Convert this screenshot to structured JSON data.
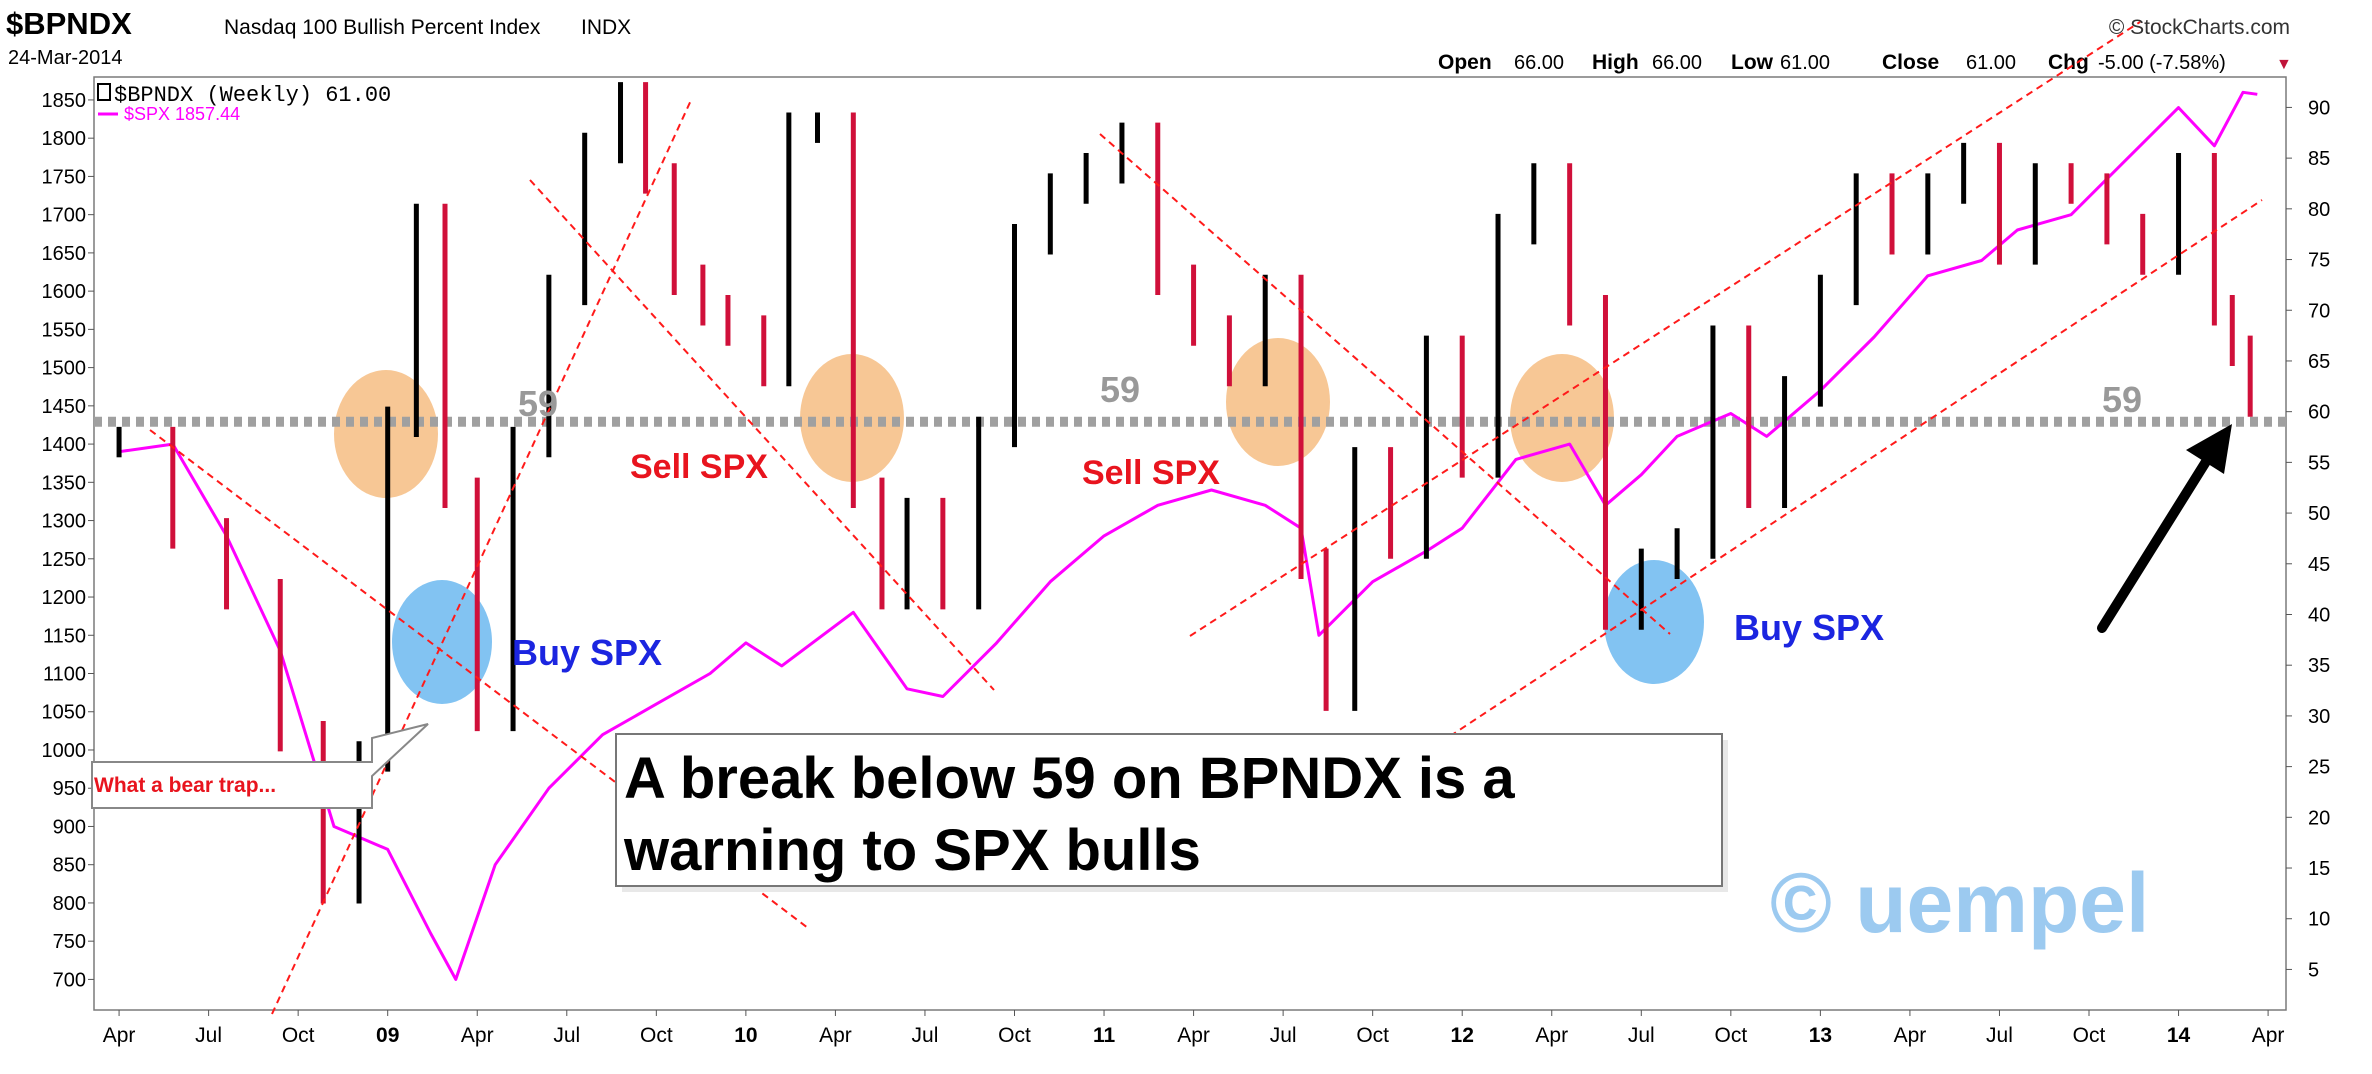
{
  "header": {
    "symbol": "$BPNDX",
    "name": "Nasdaq 100 Bullish Percent Index",
    "exchange": "INDX",
    "date": "24-Mar-2014",
    "copyright": "© StockCharts.com",
    "ohlc": [
      {
        "label": "Open",
        "value": "66.00"
      },
      {
        "label": "High",
        "value": "66.00"
      },
      {
        "label": "Low",
        "value": "61.00"
      },
      {
        "label": "Close",
        "value": "61.00"
      },
      {
        "label": "Chg",
        "value": "-5.00 (-7.58%)"
      }
    ],
    "chg_marker": "▼"
  },
  "legend": {
    "bpndx": "$BPNDX (Weekly) 61.00",
    "spx": "$SPX 1857.44"
  },
  "annotations": {
    "level_labels": [
      "59",
      "59",
      "59"
    ],
    "sell_labels": [
      "Sell SPX",
      "Sell SPX"
    ],
    "buy_labels": [
      "Buy SPX",
      "Buy SPX"
    ],
    "box_line1": "A break below 59 on BPNDX is a",
    "box_line2": "warning to SPX bulls",
    "callout": "What a bear trap...",
    "watermark": "© uempel"
  },
  "colors": {
    "up_bar": "#000000",
    "down_bar": "#d0103a",
    "spx_line": "#ff00ff",
    "trend_line": "#ff1a1a",
    "level_line": "#a0a0a0",
    "sell_circle": "#f5b97a",
    "buy_circle": "#6cb8f0"
  },
  "chart_data": {
    "type": "bar",
    "title": "$BPNDX Nasdaq 100 Bullish Percent Index",
    "periodicity": "Weekly",
    "x_range": [
      "2008-04",
      "2014-04"
    ],
    "x_tick_labels": [
      "Apr",
      "Jul",
      "Oct",
      "09",
      "Apr",
      "Jul",
      "Oct",
      "10",
      "Apr",
      "Jul",
      "Oct",
      "11",
      "Apr",
      "Jul",
      "Oct",
      "12",
      "Apr",
      "Jul",
      "Oct",
      "13",
      "Apr",
      "Jul",
      "Oct",
      "14",
      "Apr"
    ],
    "y_left_ticks": [
      700,
      750,
      800,
      850,
      900,
      950,
      1000,
      1050,
      1100,
      1150,
      1200,
      1250,
      1300,
      1350,
      1400,
      1450,
      1500,
      1550,
      1600,
      1650,
      1700,
      1750,
      1800,
      1850
    ],
    "y_left_range": [
      660,
      1880
    ],
    "y_right_ticks": [
      5,
      10,
      15,
      20,
      25,
      30,
      35,
      40,
      45,
      50,
      55,
      60,
      65,
      70,
      75,
      80,
      85,
      90
    ],
    "y_right_range": [
      1,
      93
    ],
    "level": 59,
    "series": [
      {
        "name": "$BPNDX",
        "axis": "right",
        "style": "ohlc",
        "x": [
          2008.25,
          2008.4,
          2008.55,
          2008.7,
          2008.82,
          2008.92,
          2009.0,
          2009.08,
          2009.16,
          2009.25,
          2009.35,
          2009.45,
          2009.55,
          2009.65,
          2009.72,
          2009.8,
          2009.88,
          2009.95,
          2010.05,
          2010.12,
          2010.2,
          2010.3,
          2010.38,
          2010.45,
          2010.55,
          2010.65,
          2010.75,
          2010.85,
          2010.95,
          2011.05,
          2011.15,
          2011.25,
          2011.35,
          2011.45,
          2011.55,
          2011.62,
          2011.7,
          2011.8,
          2011.9,
          2012.0,
          2012.1,
          2012.2,
          2012.3,
          2012.4,
          2012.5,
          2012.6,
          2012.7,
          2012.8,
          2012.9,
          2013.0,
          2013.1,
          2013.2,
          2013.3,
          2013.4,
          2013.5,
          2013.6,
          2013.7,
          2013.8,
          2013.9,
          2014.0,
          2014.1,
          2014.15,
          2014.2
        ],
        "values": [
          57,
          48,
          42,
          28,
          13,
          26,
          59,
          79,
          52,
          30,
          57,
          72,
          86,
          91,
          83,
          73,
          70,
          68,
          64,
          88,
          88,
          52,
          42,
          50,
          42,
          58,
          77,
          82,
          84,
          87,
          73,
          68,
          64,
          72,
          45,
          32,
          55,
          47,
          66,
          55,
          78,
          83,
          70,
          40,
          45,
          47,
          67,
          52,
          62,
          72,
          82,
          77,
          82,
          85,
          76,
          83,
          82,
          78,
          75,
          84,
          70,
          66,
          61
        ]
      },
      {
        "name": "$SPX",
        "axis": "left",
        "style": "line",
        "x": [
          2008.25,
          2008.4,
          2008.55,
          2008.7,
          2008.85,
          2009.0,
          2009.12,
          2009.19,
          2009.3,
          2009.45,
          2009.6,
          2009.75,
          2009.9,
          2010.0,
          2010.1,
          2010.3,
          2010.45,
          2010.55,
          2010.7,
          2010.85,
          2011.0,
          2011.15,
          2011.3,
          2011.45,
          2011.55,
          2011.6,
          2011.75,
          2011.9,
          2012.0,
          2012.15,
          2012.3,
          2012.4,
          2012.5,
          2012.6,
          2012.75,
          2012.85,
          2013.0,
          2013.15,
          2013.3,
          2013.45,
          2013.55,
          2013.7,
          2013.85,
          2014.0,
          2014.1,
          2014.18,
          2014.22
        ],
        "values": [
          1390,
          1400,
          1280,
          1130,
          900,
          870,
          760,
          700,
          850,
          950,
          1020,
          1060,
          1100,
          1140,
          1110,
          1180,
          1080,
          1070,
          1140,
          1220,
          1280,
          1320,
          1340,
          1320,
          1290,
          1150,
          1220,
          1260,
          1290,
          1380,
          1400,
          1320,
          1360,
          1410,
          1440,
          1410,
          1470,
          1540,
          1620,
          1640,
          1680,
          1700,
          1770,
          1840,
          1790,
          1860,
          1857.44
        ]
      }
    ]
  }
}
